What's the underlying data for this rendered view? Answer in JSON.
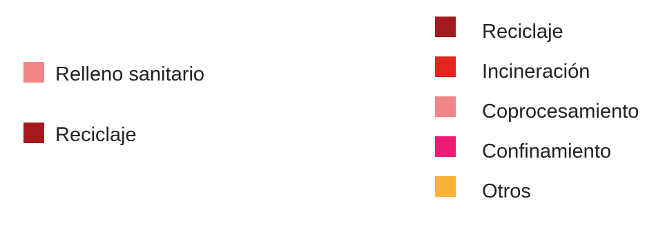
{
  "chart_data": [
    {
      "type": "pie",
      "legend": [
        {
          "label": "Relleno sanitario",
          "color": "#f18588"
        },
        {
          "label": "Reciclaje",
          "color": "#a51a1d"
        }
      ]
    },
    {
      "type": "pie",
      "legend": [
        {
          "label": "Reciclaje",
          "color": "#a51a1d"
        },
        {
          "label": "Incineración",
          "color": "#e2251e"
        },
        {
          "label": "Coprocesamiento",
          "color": "#f18588"
        },
        {
          "label": "Confinamiento",
          "color": "#eb1c75"
        },
        {
          "label": "Otros",
          "color": "#f8b334"
        }
      ]
    }
  ]
}
